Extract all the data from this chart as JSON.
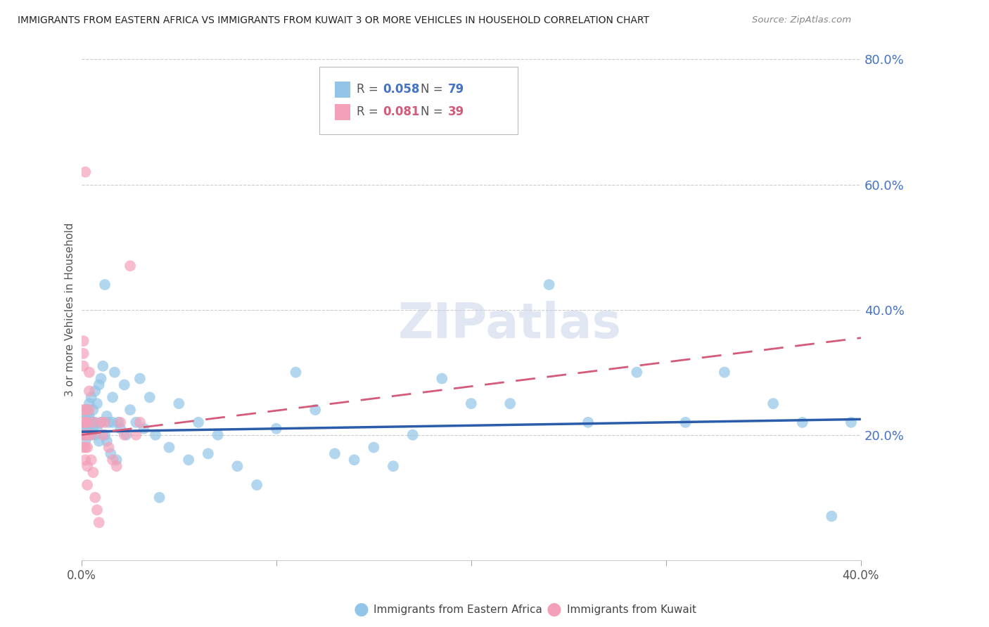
{
  "title": "IMMIGRANTS FROM EASTERN AFRICA VS IMMIGRANTS FROM KUWAIT 3 OR MORE VEHICLES IN HOUSEHOLD CORRELATION CHART",
  "source": "Source: ZipAtlas.com",
  "ylabel": "3 or more Vehicles in Household",
  "r_eastern_africa": 0.058,
  "n_eastern_africa": 79,
  "r_kuwait": 0.081,
  "n_kuwait": 39,
  "xlim": [
    0.0,
    0.4
  ],
  "ylim": [
    0.0,
    0.8
  ],
  "color_eastern": "#92c5e8",
  "color_kuwait": "#f4a0b8",
  "line_color_eastern": "#2a5caa",
  "line_color_kuwait": "#d45a7a",
  "watermark": "ZIPatlas",
  "eastern_africa_x": [
    0.001,
    0.001,
    0.001,
    0.002,
    0.002,
    0.002,
    0.002,
    0.003,
    0.003,
    0.003,
    0.003,
    0.004,
    0.004,
    0.004,
    0.005,
    0.005,
    0.005,
    0.006,
    0.006,
    0.006,
    0.007,
    0.007,
    0.007,
    0.008,
    0.008,
    0.009,
    0.009,
    0.01,
    0.01,
    0.011,
    0.012,
    0.012,
    0.013,
    0.013,
    0.014,
    0.015,
    0.016,
    0.016,
    0.017,
    0.018,
    0.019,
    0.02,
    0.022,
    0.023,
    0.025,
    0.028,
    0.03,
    0.032,
    0.035,
    0.038,
    0.04,
    0.045,
    0.05,
    0.055,
    0.06,
    0.065,
    0.07,
    0.08,
    0.09,
    0.1,
    0.11,
    0.12,
    0.13,
    0.14,
    0.15,
    0.16,
    0.17,
    0.185,
    0.2,
    0.22,
    0.24,
    0.26,
    0.285,
    0.31,
    0.33,
    0.355,
    0.37,
    0.385,
    0.395
  ],
  "eastern_africa_y": [
    0.22,
    0.21,
    0.23,
    0.2,
    0.22,
    0.24,
    0.19,
    0.23,
    0.22,
    0.24,
    0.21,
    0.25,
    0.2,
    0.23,
    0.22,
    0.26,
    0.2,
    0.24,
    0.21,
    0.22,
    0.27,
    0.22,
    0.2,
    0.25,
    0.21,
    0.28,
    0.19,
    0.29,
    0.22,
    0.31,
    0.2,
    0.44,
    0.23,
    0.19,
    0.22,
    0.17,
    0.26,
    0.22,
    0.3,
    0.16,
    0.22,
    0.21,
    0.28,
    0.2,
    0.24,
    0.22,
    0.29,
    0.21,
    0.26,
    0.2,
    0.1,
    0.18,
    0.25,
    0.16,
    0.22,
    0.17,
    0.2,
    0.15,
    0.12,
    0.21,
    0.3,
    0.24,
    0.17,
    0.16,
    0.18,
    0.15,
    0.2,
    0.29,
    0.25,
    0.25,
    0.44,
    0.22,
    0.3,
    0.22,
    0.3,
    0.25,
    0.22,
    0.07,
    0.22
  ],
  "kuwait_x": [
    0.001,
    0.001,
    0.001,
    0.001,
    0.001,
    0.001,
    0.001,
    0.002,
    0.002,
    0.002,
    0.002,
    0.002,
    0.002,
    0.003,
    0.003,
    0.003,
    0.003,
    0.003,
    0.004,
    0.004,
    0.004,
    0.005,
    0.005,
    0.006,
    0.006,
    0.007,
    0.008,
    0.009,
    0.01,
    0.011,
    0.012,
    0.014,
    0.016,
    0.018,
    0.02,
    0.022,
    0.025,
    0.028,
    0.03
  ],
  "kuwait_y": [
    0.22,
    0.2,
    0.24,
    0.18,
    0.31,
    0.33,
    0.35,
    0.22,
    0.2,
    0.24,
    0.18,
    0.16,
    0.62,
    0.22,
    0.18,
    0.2,
    0.15,
    0.12,
    0.3,
    0.27,
    0.24,
    0.2,
    0.16,
    0.22,
    0.14,
    0.1,
    0.08,
    0.06,
    0.22,
    0.2,
    0.22,
    0.18,
    0.16,
    0.15,
    0.22,
    0.2,
    0.47,
    0.2,
    0.22
  ],
  "blue_trend_y0": 0.205,
  "blue_trend_y1": 0.225,
  "pink_trend_y0": 0.2,
  "pink_trend_y1": 0.355
}
